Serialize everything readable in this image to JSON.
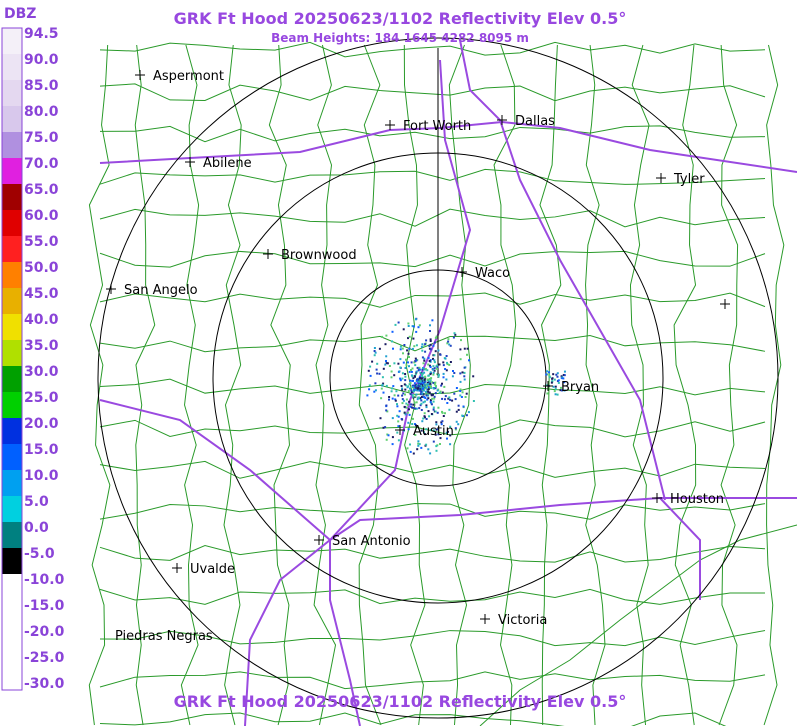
{
  "header": {
    "legend_unit": "DBZ",
    "title": "GRK Ft Hood 20250623/1102 Reflectivity Elev 0.5°",
    "subtitle": "Beam Heights: 184 1645 4282 8095 m",
    "footer_title": "GRK Ft Hood 20250623/1102 Reflectivity Elev 0.5°"
  },
  "legend": {
    "labels": [
      "94.5",
      "90.0",
      "85.0",
      "80.0",
      "75.0",
      "70.0",
      "65.0",
      "60.0",
      "55.0",
      "50.0",
      "45.0",
      "40.0",
      "35.0",
      "30.0",
      "25.0",
      "20.0",
      "15.0",
      "10.0",
      "5.0",
      "0.0",
      "-5.0",
      "-10.0",
      "-15.0",
      "-20.0",
      "-25.0",
      "-30.0"
    ]
  },
  "cities": [
    {
      "name": "Aspermont"
    },
    {
      "name": "Fort Worth"
    },
    {
      "name": "Dallas"
    },
    {
      "name": "Abilene"
    },
    {
      "name": "Tyler"
    },
    {
      "name": "Brownwood"
    },
    {
      "name": "Waco"
    },
    {
      "name": "San Angelo"
    },
    {
      "name": "Bryan"
    },
    {
      "name": "Austin"
    },
    {
      "name": "Houston"
    },
    {
      "name": "San Antonio"
    },
    {
      "name": "Uvalde"
    },
    {
      "name": "Victoria"
    },
    {
      "name": "Piedras Negras"
    }
  ]
}
